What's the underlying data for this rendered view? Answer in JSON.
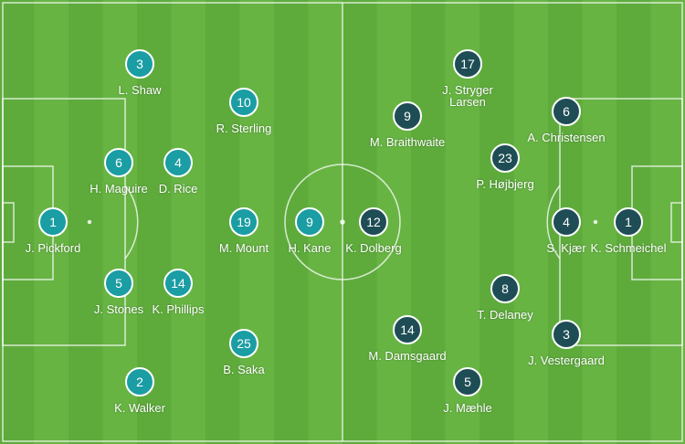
{
  "colors": {
    "home": "#1a9da3",
    "away": "#1f4d55"
  },
  "home": [
    {
      "num": "1",
      "name": "J. Pickford"
    },
    {
      "num": "3",
      "name": "L. Shaw"
    },
    {
      "num": "10",
      "name": "R. Sterling"
    },
    {
      "num": "6",
      "name": "H. Maguire"
    },
    {
      "num": "4",
      "name": "D. Rice"
    },
    {
      "num": "19",
      "name": "M. Mount"
    },
    {
      "num": "9",
      "name": "H. Kane"
    },
    {
      "num": "5",
      "name": "J. Stones"
    },
    {
      "num": "14",
      "name": "K. Phillips"
    },
    {
      "num": "25",
      "name": "B. Saka"
    },
    {
      "num": "2",
      "name": "K. Walker"
    }
  ],
  "away": [
    {
      "num": "17",
      "name": "J. Stryger\nLarsen"
    },
    {
      "num": "9",
      "name": "M. Braithwaite"
    },
    {
      "num": "6",
      "name": "A. Christensen"
    },
    {
      "num": "23",
      "name": "P. Højbjerg"
    },
    {
      "num": "12",
      "name": "K. Dolberg"
    },
    {
      "num": "4",
      "name": "S. Kjær"
    },
    {
      "num": "1",
      "name": "K. Schmeichel"
    },
    {
      "num": "8",
      "name": "T. Delaney"
    },
    {
      "num": "14",
      "name": "M. Damsgaard"
    },
    {
      "num": "3",
      "name": "J. Vestergaard"
    },
    {
      "num": "5",
      "name": "J. Mæhle"
    }
  ]
}
